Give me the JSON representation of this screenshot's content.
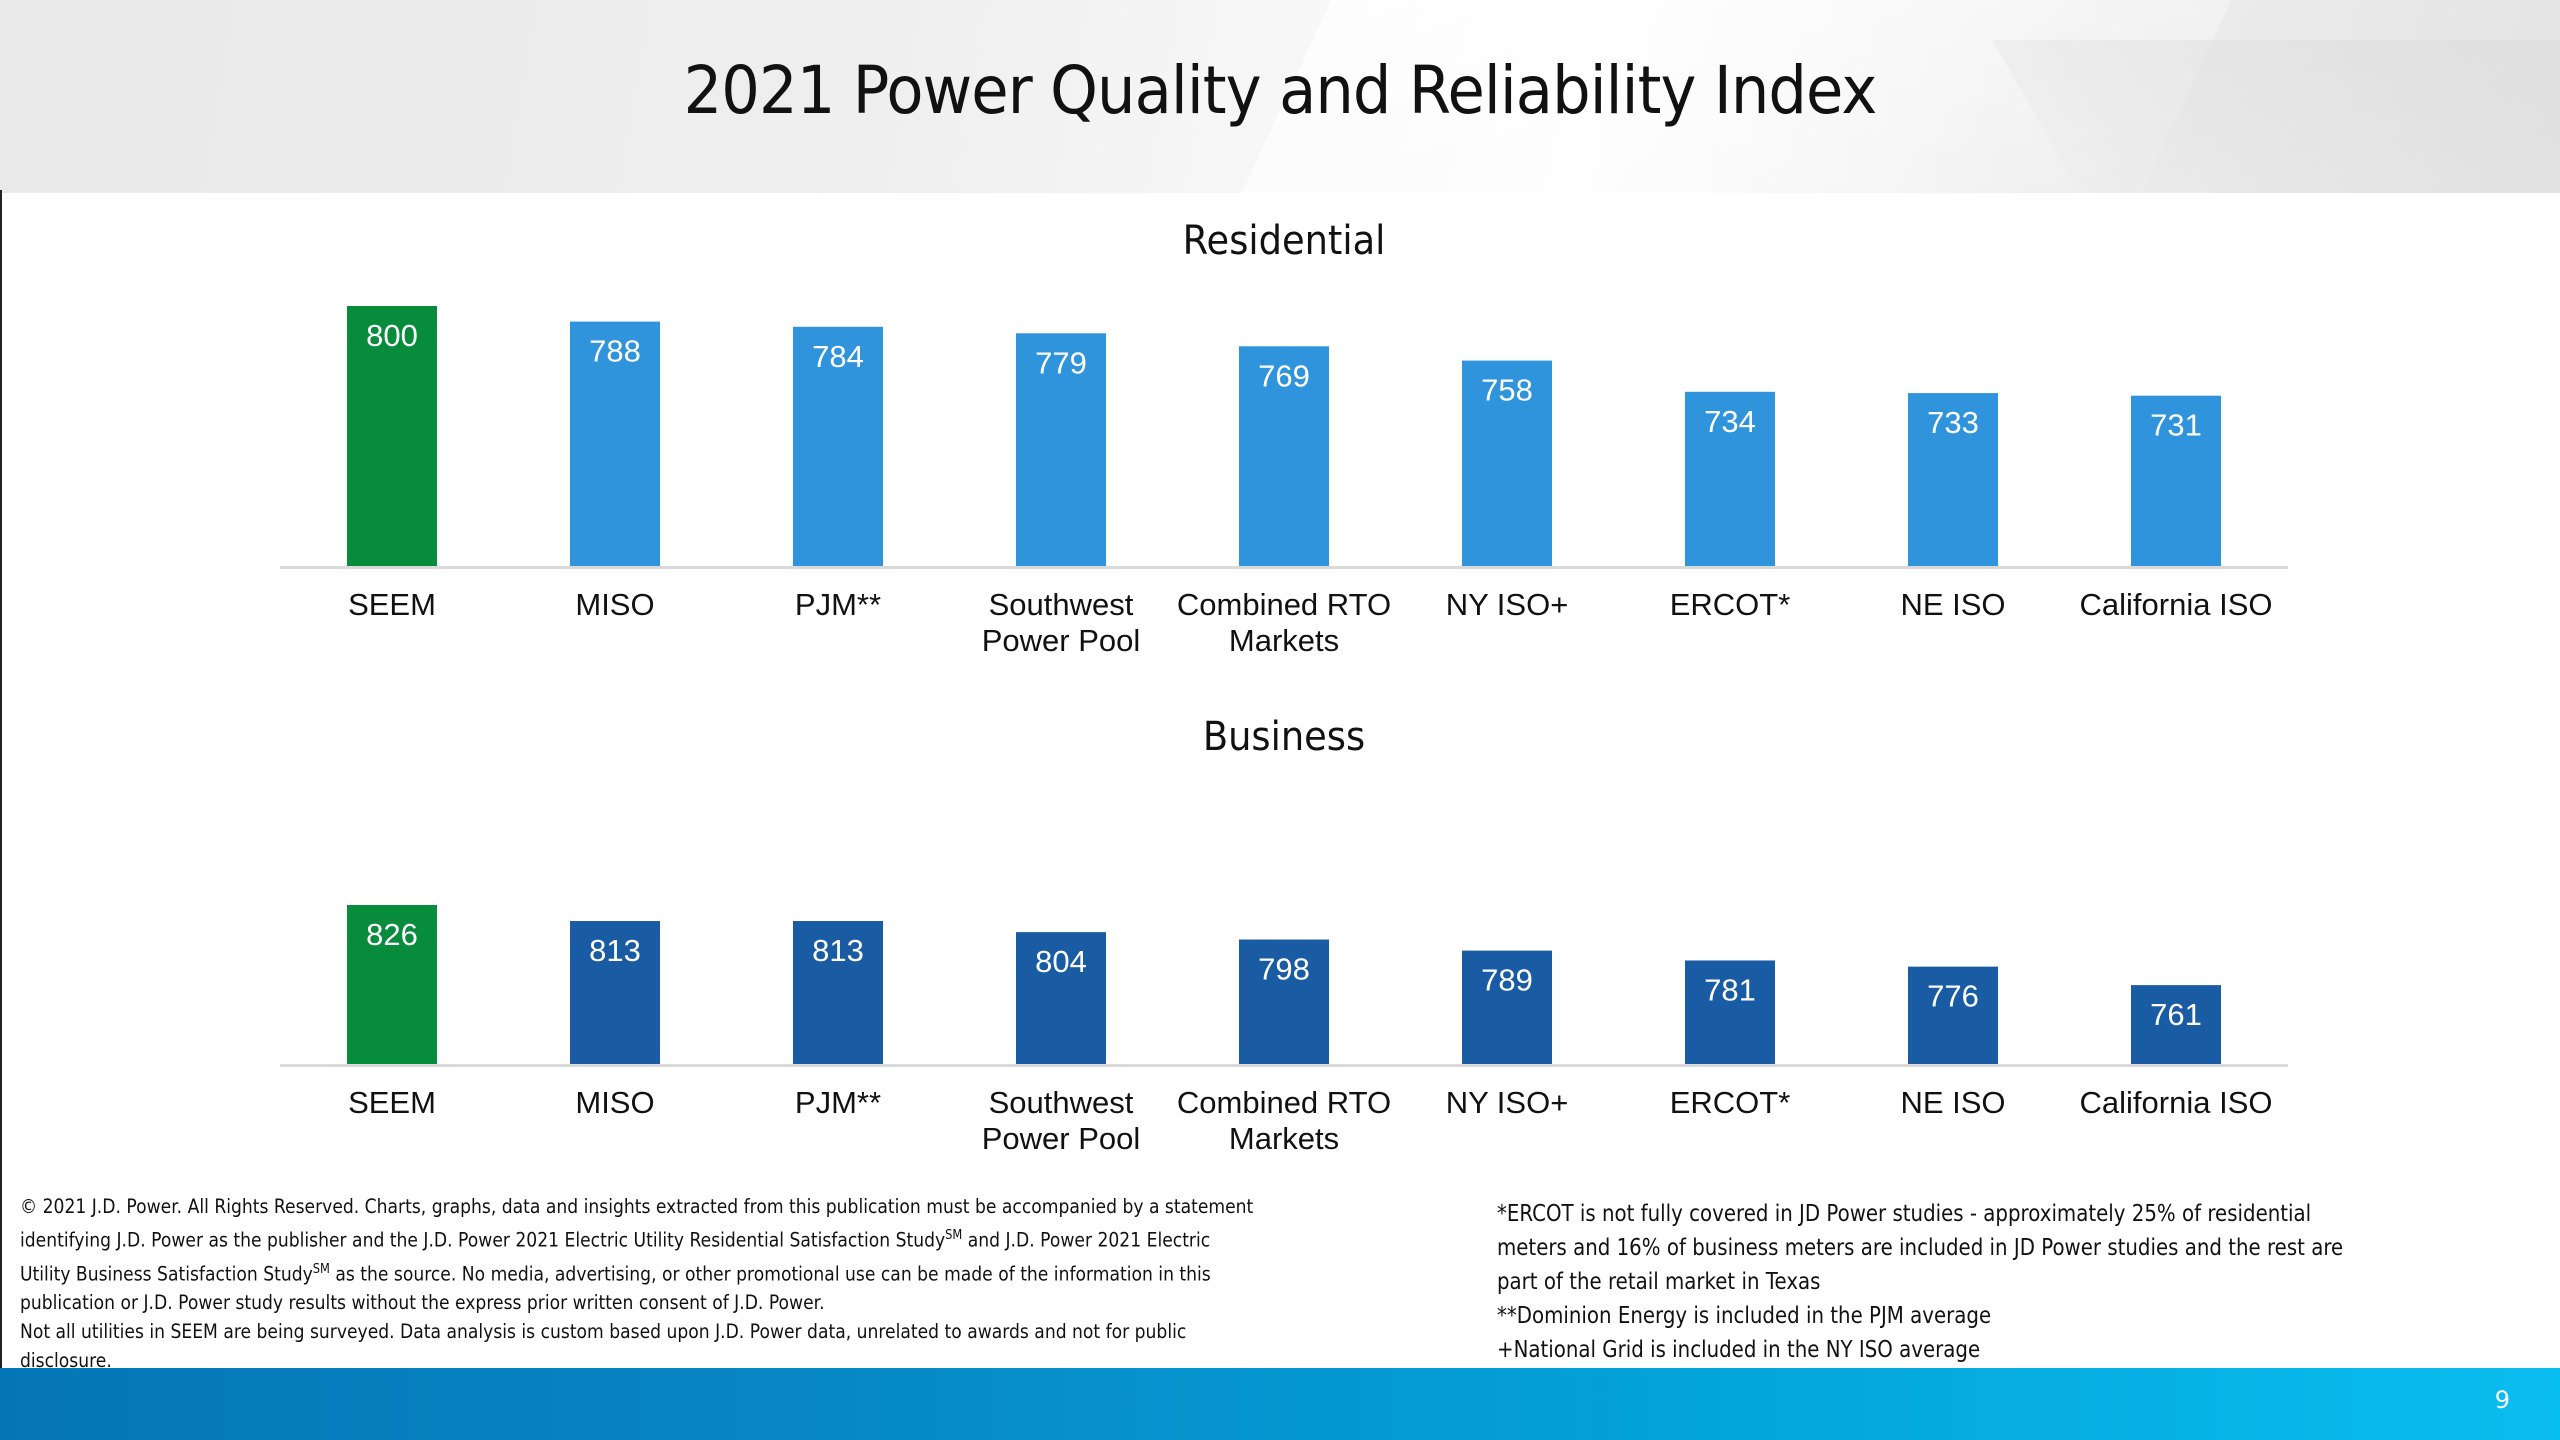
{
  "page": {
    "title": "2021 Power Quality and Reliability Index",
    "page_number": "9"
  },
  "colors": {
    "highlight_bar": "#078c3c",
    "residential_bar": "#2f94dc",
    "business_bar": "#1a5ca3",
    "axis_line": "#d9d9d9",
    "footer_start": "#0576b5",
    "footer_end": "#0abdf0"
  },
  "chart_data": [
    {
      "type": "bar",
      "title": "Residential",
      "categories": [
        "SEEM",
        "MISO",
        "PJM**",
        "Southwest Power Pool",
        "Combined RTO Markets",
        "NY ISO+",
        "ERCOT*",
        "NE ISO",
        "California ISO"
      ],
      "category_lines": [
        [
          "SEEM"
        ],
        [
          "MISO"
        ],
        [
          "PJM**"
        ],
        [
          "Southwest",
          "Power Pool"
        ],
        [
          "Combined RTO",
          "Markets"
        ],
        [
          "NY ISO+"
        ],
        [
          "ERCOT*"
        ],
        [
          "NE ISO"
        ],
        [
          "California ISO"
        ]
      ],
      "values": [
        800,
        788,
        784,
        779,
        769,
        758,
        734,
        733,
        731
      ],
      "highlight": "SEEM",
      "xlabel": "",
      "ylabel": "",
      "ylim": [
        600,
        800
      ],
      "grid": false,
      "data_labels": "inside-top"
    },
    {
      "type": "bar",
      "title": "Business",
      "categories": [
        "SEEM",
        "MISO",
        "PJM**",
        "Southwest Power Pool",
        "Combined RTO Markets",
        "NY ISO+",
        "ERCOT*",
        "NE ISO",
        "California ISO"
      ],
      "category_lines": [
        [
          "SEEM"
        ],
        [
          "MISO"
        ],
        [
          "PJM**"
        ],
        [
          "Southwest",
          "Power Pool"
        ],
        [
          "Combined RTO",
          "Markets"
        ],
        [
          "NY ISO+"
        ],
        [
          "ERCOT*"
        ],
        [
          "NE ISO"
        ],
        [
          "California ISO"
        ]
      ],
      "values": [
        826,
        813,
        813,
        804,
        798,
        789,
        781,
        776,
        761
      ],
      "highlight": "SEEM",
      "xlabel": "",
      "ylabel": "",
      "ylim": [
        697,
        826
      ],
      "grid": false,
      "data_labels": "inside-top"
    }
  ],
  "footnotes": {
    "copyright": {
      "line1": "© 2021 J.D. Power. All Rights Reserved. Charts, graphs, data and insights extracted from this publication must be accompanied by a statement",
      "line2a": "identifying J.D. Power as the publisher and the J.D. Power 2021 Electric Utility Residential Satisfaction Study",
      "line2_sup": "SM",
      "line2b": " and J.D. Power 2021 Electric",
      "line3a": "Utility Business Satisfaction Study",
      "line3_sup": "SM",
      "line3b": " as the source. No media, advertising, or other promotional use can be made of the information in this",
      "line4": "publication or J.D. Power study results without the express prior written consent of J.D. Power.",
      "line5": "Not all utilities in SEEM are being surveyed. Data analysis is custom based upon J.D. Power data, unrelated to awards and not for public",
      "line6": "disclosure."
    },
    "notes": {
      "ercot_line1": "*ERCOT is not fully covered in JD Power studies - approximately 25% of residential",
      "ercot_line2": "meters and 16% of business meters are included in JD Power studies and the rest are",
      "ercot_line3": "part of the retail market in Texas",
      "pjm": "**Dominion Energy is included in the PJM average",
      "nyiso": "+National Grid is included in the NY ISO average"
    }
  }
}
